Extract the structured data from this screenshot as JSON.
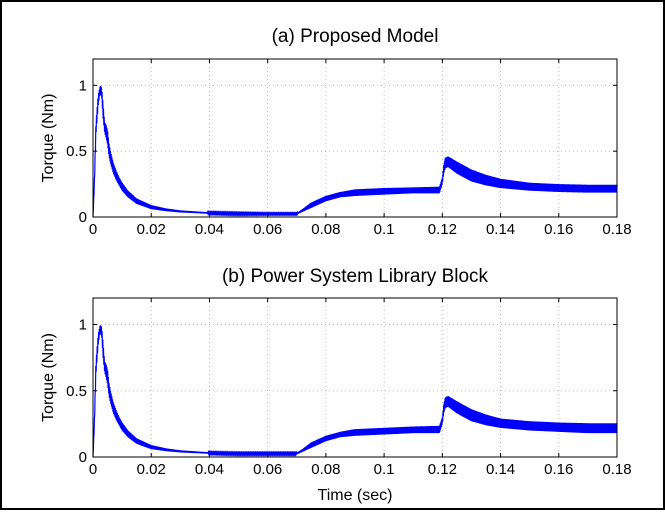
{
  "chart_data": [
    {
      "type": "line",
      "title": "(a) Proposed Model",
      "xlabel": "",
      "ylabel": "Torque (Nm)",
      "xlim": [
        0,
        0.18
      ],
      "ylim": [
        0,
        1.2
      ],
      "xticks": [
        "0",
        "0.02",
        "0.04",
        "0.06",
        "0.08",
        "0.1",
        "0.12",
        "0.14",
        "0.16",
        "0.18"
      ],
      "yticks": [
        "0",
        "0.5",
        "1"
      ],
      "grid": true,
      "color": "#0000ff",
      "series": [
        {
          "envelope_upper": [
            [
              0,
              0
            ],
            [
              0.0005,
              0.3
            ],
            [
              0.001,
              0.72
            ],
            [
              0.0018,
              0.93
            ],
            [
              0.0025,
              1.0
            ],
            [
              0.003,
              0.98
            ],
            [
              0.0035,
              0.85
            ],
            [
              0.004,
              0.72
            ],
            [
              0.0045,
              0.7
            ],
            [
              0.005,
              0.66
            ],
            [
              0.0055,
              0.56
            ],
            [
              0.006,
              0.5
            ],
            [
              0.007,
              0.41
            ],
            [
              0.008,
              0.35
            ],
            [
              0.009,
              0.3
            ],
            [
              0.01,
              0.26
            ],
            [
              0.012,
              0.2
            ],
            [
              0.015,
              0.14
            ],
            [
              0.02,
              0.09
            ],
            [
              0.025,
              0.065
            ],
            [
              0.03,
              0.05
            ],
            [
              0.04,
              0.035
            ],
            [
              0.05,
              0.03
            ],
            [
              0.06,
              0.028
            ],
            [
              0.07,
              0.028
            ],
            [
              0.072,
              0.06
            ],
            [
              0.075,
              0.11
            ],
            [
              0.08,
              0.16
            ],
            [
              0.085,
              0.19
            ],
            [
              0.09,
              0.21
            ],
            [
              0.1,
              0.22
            ],
            [
              0.11,
              0.225
            ],
            [
              0.119,
              0.23
            ],
            [
              0.12,
              0.3
            ],
            [
              0.1205,
              0.4
            ],
            [
              0.121,
              0.45
            ],
            [
              0.122,
              0.46
            ],
            [
              0.125,
              0.42
            ],
            [
              0.13,
              0.36
            ],
            [
              0.135,
              0.32
            ],
            [
              0.14,
              0.29
            ],
            [
              0.15,
              0.26
            ],
            [
              0.16,
              0.25
            ],
            [
              0.17,
              0.245
            ],
            [
              0.18,
              0.245
            ]
          ],
          "envelope_lower": [
            [
              0,
              0
            ],
            [
              0.0005,
              0.25
            ],
            [
              0.001,
              0.62
            ],
            [
              0.0018,
              0.85
            ],
            [
              0.0025,
              0.95
            ],
            [
              0.003,
              0.9
            ],
            [
              0.0035,
              0.74
            ],
            [
              0.004,
              0.64
            ],
            [
              0.0045,
              0.6
            ],
            [
              0.005,
              0.55
            ],
            [
              0.0055,
              0.46
            ],
            [
              0.006,
              0.41
            ],
            [
              0.007,
              0.33
            ],
            [
              0.008,
              0.28
            ],
            [
              0.009,
              0.24
            ],
            [
              0.01,
              0.2
            ],
            [
              0.012,
              0.15
            ],
            [
              0.015,
              0.1
            ],
            [
              0.02,
              0.06
            ],
            [
              0.025,
              0.045
            ],
            [
              0.03,
              0.035
            ],
            [
              0.04,
              0.025
            ],
            [
              0.05,
              0.02
            ],
            [
              0.06,
              0.02
            ],
            [
              0.07,
              0.02
            ],
            [
              0.072,
              0.04
            ],
            [
              0.075,
              0.07
            ],
            [
              0.08,
              0.12
            ],
            [
              0.085,
              0.15
            ],
            [
              0.09,
              0.16
            ],
            [
              0.1,
              0.17
            ],
            [
              0.11,
              0.18
            ],
            [
              0.119,
              0.18
            ],
            [
              0.12,
              0.25
            ],
            [
              0.1205,
              0.33
            ],
            [
              0.121,
              0.37
            ],
            [
              0.122,
              0.38
            ],
            [
              0.125,
              0.33
            ],
            [
              0.13,
              0.27
            ],
            [
              0.135,
              0.24
            ],
            [
              0.14,
              0.22
            ],
            [
              0.15,
              0.2
            ],
            [
              0.16,
              0.19
            ],
            [
              0.17,
              0.185
            ],
            [
              0.18,
              0.185
            ]
          ]
        }
      ]
    },
    {
      "type": "line",
      "title": "(b) Power System Library Block",
      "xlabel": "Time (sec)",
      "ylabel": "Torque (Nm)",
      "xlim": [
        0,
        0.18
      ],
      "ylim": [
        0,
        1.2
      ],
      "xticks": [
        "0",
        "0.02",
        "0.04",
        "0.06",
        "0.08",
        "0.1",
        "0.12",
        "0.14",
        "0.16",
        "0.18"
      ],
      "yticks": [
        "0",
        "0.5",
        "1"
      ],
      "grid": true,
      "color": "#0000ff",
      "series": [
        {
          "envelope_upper": [
            [
              0,
              0
            ],
            [
              0.0005,
              0.3
            ],
            [
              0.001,
              0.72
            ],
            [
              0.0018,
              0.93
            ],
            [
              0.0025,
              1.0
            ],
            [
              0.003,
              0.98
            ],
            [
              0.0035,
              0.85
            ],
            [
              0.004,
              0.72
            ],
            [
              0.0045,
              0.7
            ],
            [
              0.005,
              0.66
            ],
            [
              0.0055,
              0.56
            ],
            [
              0.006,
              0.5
            ],
            [
              0.007,
              0.41
            ],
            [
              0.008,
              0.35
            ],
            [
              0.009,
              0.3
            ],
            [
              0.01,
              0.26
            ],
            [
              0.012,
              0.2
            ],
            [
              0.015,
              0.14
            ],
            [
              0.02,
              0.09
            ],
            [
              0.025,
              0.065
            ],
            [
              0.03,
              0.05
            ],
            [
              0.04,
              0.035
            ],
            [
              0.05,
              0.03
            ],
            [
              0.06,
              0.03
            ],
            [
              0.07,
              0.03
            ],
            [
              0.072,
              0.06
            ],
            [
              0.075,
              0.11
            ],
            [
              0.08,
              0.16
            ],
            [
              0.085,
              0.19
            ],
            [
              0.09,
              0.21
            ],
            [
              0.1,
              0.22
            ],
            [
              0.11,
              0.23
            ],
            [
              0.119,
              0.235
            ],
            [
              0.12,
              0.3
            ],
            [
              0.1205,
              0.4
            ],
            [
              0.121,
              0.45
            ],
            [
              0.122,
              0.46
            ],
            [
              0.125,
              0.42
            ],
            [
              0.13,
              0.36
            ],
            [
              0.135,
              0.32
            ],
            [
              0.14,
              0.29
            ],
            [
              0.15,
              0.27
            ],
            [
              0.16,
              0.26
            ],
            [
              0.17,
              0.255
            ],
            [
              0.18,
              0.255
            ]
          ],
          "envelope_lower": [
            [
              0,
              0
            ],
            [
              0.0005,
              0.25
            ],
            [
              0.001,
              0.62
            ],
            [
              0.0018,
              0.85
            ],
            [
              0.0025,
              0.95
            ],
            [
              0.003,
              0.9
            ],
            [
              0.0035,
              0.74
            ],
            [
              0.004,
              0.64
            ],
            [
              0.0045,
              0.6
            ],
            [
              0.005,
              0.55
            ],
            [
              0.0055,
              0.46
            ],
            [
              0.006,
              0.41
            ],
            [
              0.007,
              0.33
            ],
            [
              0.008,
              0.28
            ],
            [
              0.009,
              0.24
            ],
            [
              0.01,
              0.2
            ],
            [
              0.012,
              0.15
            ],
            [
              0.015,
              0.1
            ],
            [
              0.02,
              0.06
            ],
            [
              0.025,
              0.045
            ],
            [
              0.03,
              0.035
            ],
            [
              0.04,
              0.025
            ],
            [
              0.05,
              0.02
            ],
            [
              0.06,
              0.02
            ],
            [
              0.07,
              0.02
            ],
            [
              0.072,
              0.04
            ],
            [
              0.075,
              0.07
            ],
            [
              0.08,
              0.12
            ],
            [
              0.085,
              0.15
            ],
            [
              0.09,
              0.16
            ],
            [
              0.1,
              0.17
            ],
            [
              0.11,
              0.18
            ],
            [
              0.119,
              0.18
            ],
            [
              0.12,
              0.25
            ],
            [
              0.1205,
              0.33
            ],
            [
              0.121,
              0.37
            ],
            [
              0.122,
              0.38
            ],
            [
              0.125,
              0.33
            ],
            [
              0.13,
              0.27
            ],
            [
              0.135,
              0.24
            ],
            [
              0.14,
              0.22
            ],
            [
              0.15,
              0.2
            ],
            [
              0.16,
              0.19
            ],
            [
              0.17,
              0.18
            ],
            [
              0.18,
              0.18
            ]
          ]
        }
      ]
    }
  ]
}
